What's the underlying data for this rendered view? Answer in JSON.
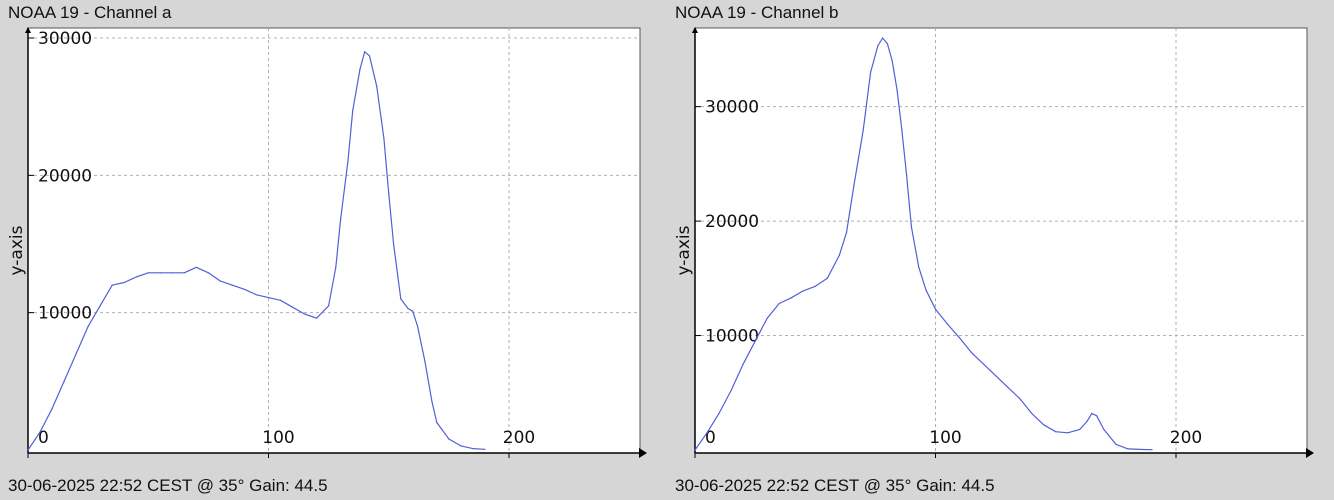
{
  "colors": {
    "line": "#5060d8",
    "grid": "#b0b0b0",
    "axis": "#000000",
    "plot_bg": "#ffffff",
    "page_bg": "#d6d6d6"
  },
  "chart_data": [
    {
      "type": "line",
      "title": "NOAA 19 - Channel a",
      "footer": "30-06-2025 22:52 CEST @ 35° Gain: 44.5",
      "ylabel": "y-axis",
      "xlim": [
        0,
        250
      ],
      "ylim": [
        0,
        30000
      ],
      "xticks": [
        "0",
        "100",
        "200"
      ],
      "xtick_values": [
        0,
        100,
        200
      ],
      "yticks": [
        "10000",
        "20000",
        "30000"
      ],
      "ytick_values": [
        10000,
        20000,
        30000
      ],
      "grid": true,
      "x": [
        0,
        5,
        10,
        15,
        20,
        25,
        30,
        35,
        40,
        45,
        50,
        55,
        60,
        65,
        70,
        75,
        80,
        85,
        90,
        95,
        100,
        105,
        110,
        115,
        120,
        125,
        128,
        130,
        133,
        135,
        138,
        140,
        142,
        145,
        148,
        150,
        152,
        155,
        158,
        160,
        162,
        165,
        168,
        170,
        175,
        180,
        185,
        190
      ],
      "y": [
        0,
        1300,
        3000,
        5000,
        7000,
        9000,
        10500,
        12000,
        12200,
        12600,
        12900,
        12900,
        12900,
        12900,
        13300,
        12900,
        12300,
        12000,
        11700,
        11300,
        11100,
        10900,
        10400,
        9900,
        9600,
        10500,
        13300,
        16800,
        21000,
        24700,
        27700,
        29000,
        28700,
        26500,
        22700,
        18700,
        15000,
        11000,
        10300,
        10100,
        9000,
        6500,
        3500,
        2000,
        800,
        300,
        100,
        50
      ]
    },
    {
      "type": "line",
      "title": "NOAA 19 - Channel b",
      "footer": "30-06-2025 22:52 CEST @ 35° Gain: 44.5",
      "ylabel": "y-axis",
      "xlim": [
        0,
        250
      ],
      "ylim": [
        0,
        36000
      ],
      "xticks": [
        "0",
        "100",
        "200"
      ],
      "xtick_values": [
        0,
        100,
        200
      ],
      "yticks": [
        "10000",
        "20000",
        "30000"
      ],
      "ytick_values": [
        10000,
        20000,
        30000
      ],
      "grid": true,
      "x": [
        0,
        5,
        10,
        15,
        20,
        25,
        30,
        35,
        40,
        45,
        50,
        55,
        60,
        63,
        66,
        70,
        73,
        76,
        78,
        80,
        82,
        84,
        86,
        88,
        90,
        93,
        96,
        100,
        105,
        110,
        115,
        120,
        125,
        130,
        135,
        140,
        145,
        150,
        155,
        160,
        163,
        165,
        167,
        170,
        175,
        180,
        185,
        190
      ],
      "y": [
        0,
        1500,
        3200,
        5200,
        7500,
        9500,
        11500,
        12800,
        13300,
        13900,
        14300,
        15000,
        17000,
        19000,
        23000,
        28000,
        33000,
        35300,
        36000,
        35500,
        34000,
        31500,
        28000,
        24000,
        19500,
        16000,
        14000,
        12300,
        11000,
        9800,
        8500,
        7500,
        6500,
        5500,
        4500,
        3200,
        2200,
        1600,
        1500,
        1800,
        2500,
        3200,
        3000,
        1800,
        500,
        100,
        50,
        30
      ]
    }
  ]
}
